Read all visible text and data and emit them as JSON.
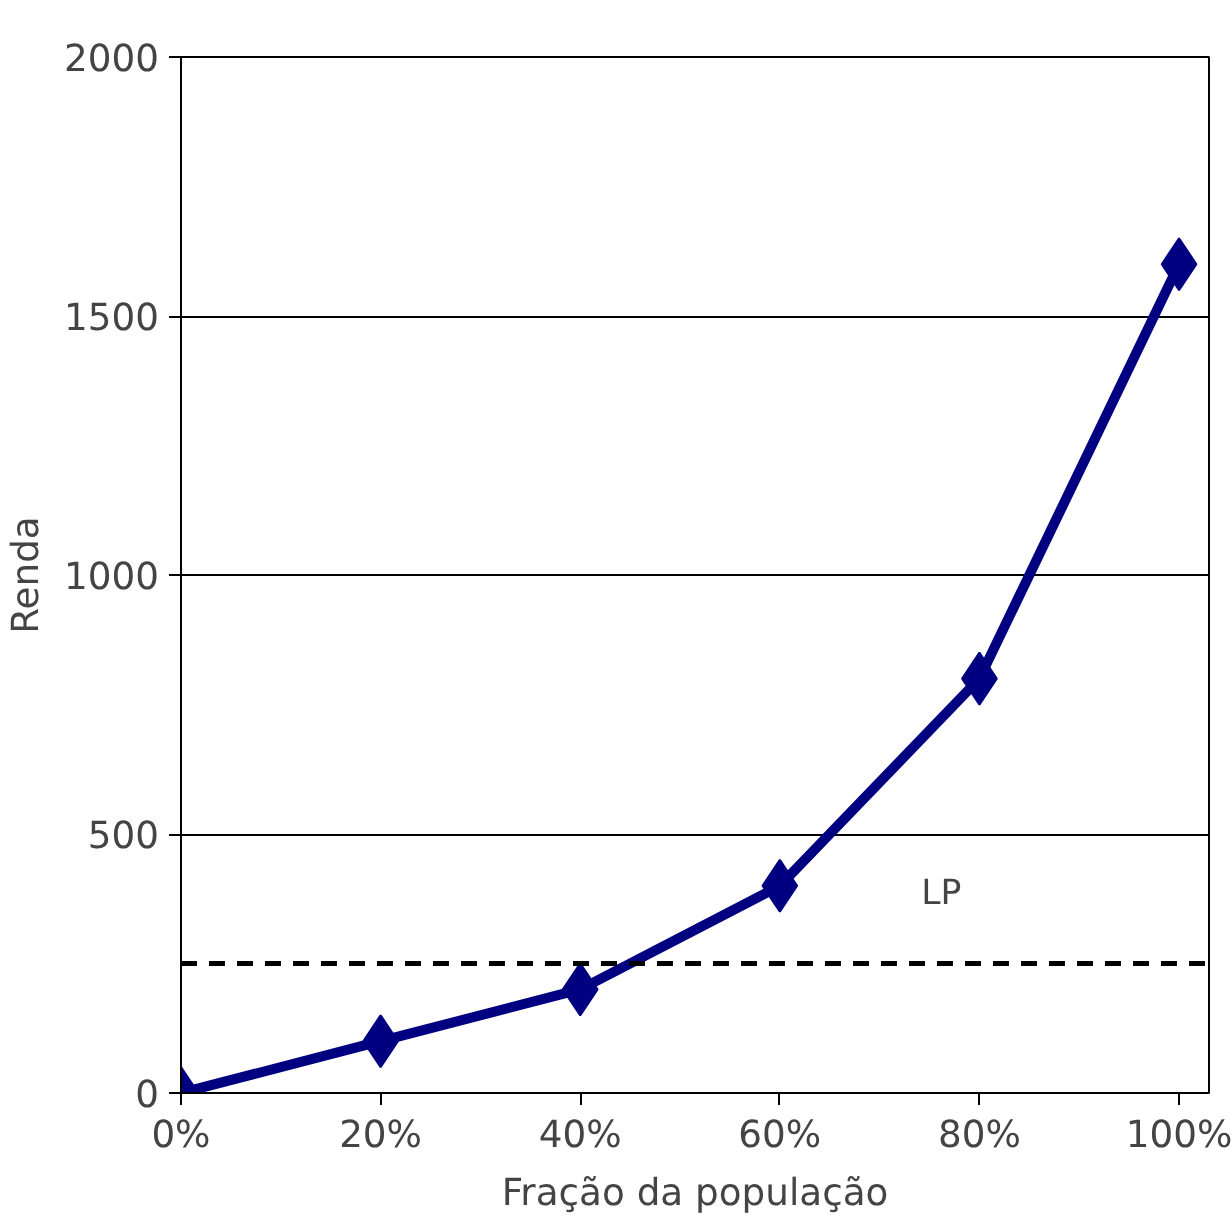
{
  "chart_data": {
    "type": "line",
    "xlabel": "Fração da população",
    "ylabel": "Renda",
    "x": [
      0,
      20,
      40,
      60,
      80,
      100
    ],
    "series": [
      {
        "color": "#000080",
        "values": [
          0,
          100,
          200,
          400,
          800,
          1600
        ]
      }
    ],
    "xlim": [
      0,
      103
    ],
    "ylim": [
      0,
      2000
    ],
    "xticks": [
      {
        "value": 0,
        "label": "0%"
      },
      {
        "value": 20,
        "label": "20%"
      },
      {
        "value": 40,
        "label": "40%"
      },
      {
        "value": 60,
        "label": "60%"
      },
      {
        "value": 80,
        "label": "80%"
      },
      {
        "value": 100,
        "label": "100%"
      }
    ],
    "yticks": [
      0,
      500,
      1000,
      1500,
      2000
    ],
    "ref_lines": [
      {
        "axis": "y",
        "value": 250,
        "label": "LP",
        "color": "#000000",
        "line_style": "dashed"
      }
    ],
    "grid": "y",
    "marker": "diamond",
    "line_style": "solid"
  }
}
